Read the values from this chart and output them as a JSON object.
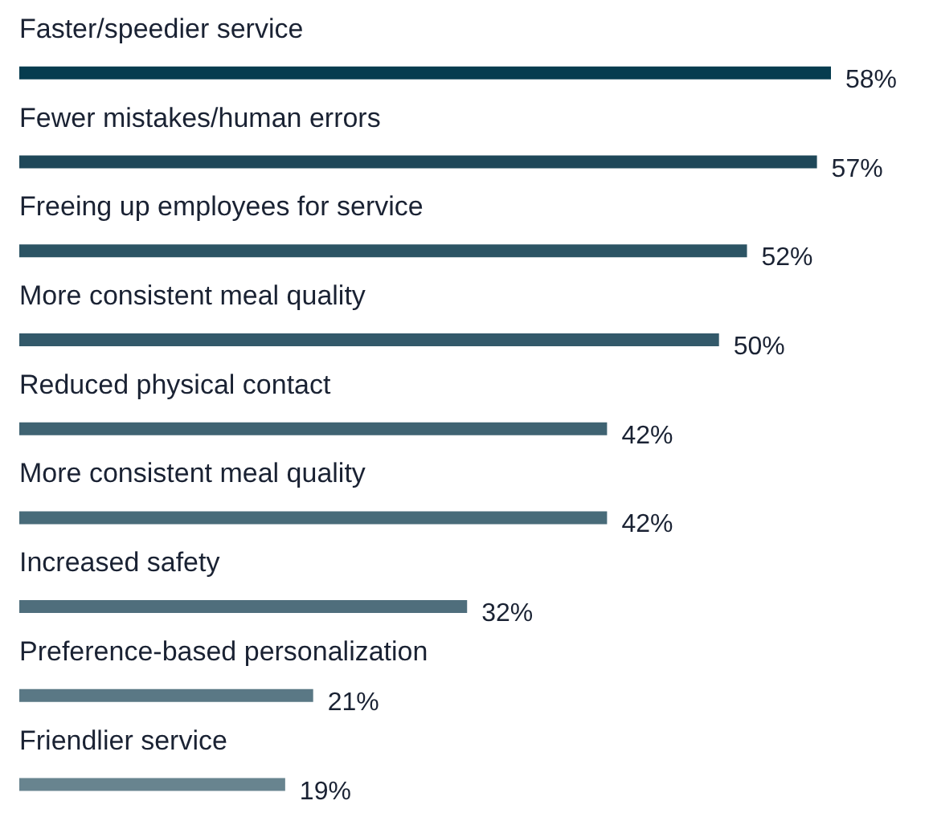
{
  "chart_data": {
    "type": "bar",
    "orientation": "horizontal",
    "categories": [
      "Faster/speedier service",
      "Fewer mistakes/human errors",
      "Freeing up employees for service",
      "More consistent meal quality",
      "Reduced physical contact",
      "More consistent meal quality",
      "Increased safety",
      "Preference-based personalization",
      "Friendlier service"
    ],
    "values": [
      58,
      57,
      52,
      50,
      42,
      42,
      32,
      21,
      19
    ],
    "value_labels": [
      "58%",
      "57%",
      "52%",
      "50%",
      "42%",
      "42%",
      "32%",
      "21%",
      "19%"
    ],
    "colors": [
      "#063c4f",
      "#1f4859",
      "#2c5464",
      "#33596a",
      "#3f6372",
      "#486b79",
      "#4f6e7c",
      "#5a7885",
      "#68848f"
    ]
  }
}
